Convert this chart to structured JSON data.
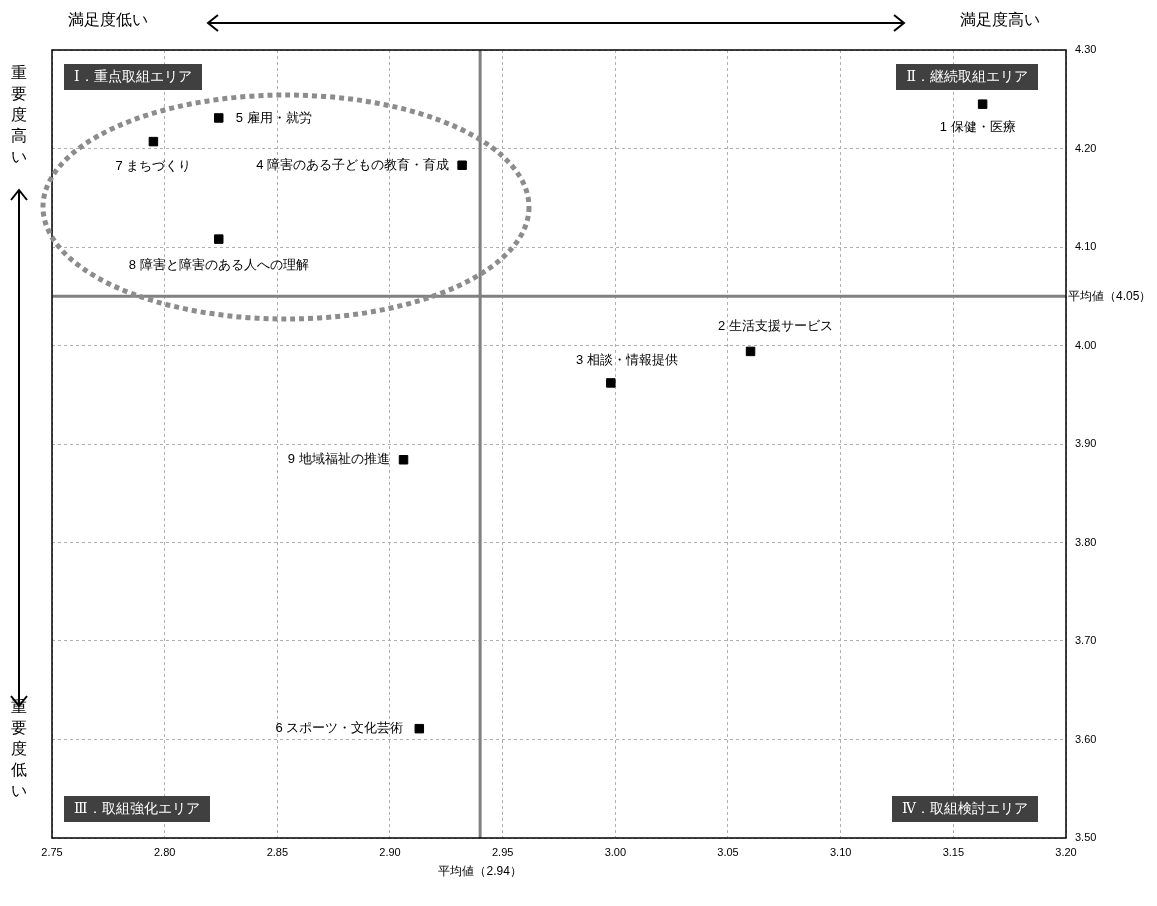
{
  "chart_data": {
    "type": "scatter",
    "marker": "square",
    "grid": true,
    "legend": false,
    "x": [
      3.163,
      3.06,
      2.998,
      2.932,
      2.824,
      2.913,
      2.795,
      2.824,
      2.906
    ],
    "series": [
      {
        "color": "#000000",
        "values": [
          4.245,
          3.994,
          3.962,
          4.183,
          4.231,
          3.611,
          4.207,
          4.108,
          3.884
        ]
      }
    ],
    "xlim": [
      2.75,
      3.2
    ],
    "xticks": [
      {
        "value": 2.75,
        "label": "2.75"
      },
      {
        "value": 2.8,
        "label": "2.80"
      },
      {
        "value": 2.85,
        "label": "2.85"
      },
      {
        "value": 2.9,
        "label": "2.90"
      },
      {
        "value": 2.95,
        "label": "2.95"
      },
      {
        "value": 3.0,
        "label": "3.00"
      },
      {
        "value": 3.05,
        "label": "3.05"
      },
      {
        "value": 3.1,
        "label": "3.10"
      },
      {
        "value": 3.15,
        "label": "3.15"
      },
      {
        "value": 3.2,
        "label": "3.20"
      }
    ],
    "ylim": [
      3.5,
      4.3
    ],
    "yticks": [
      {
        "value": 3.5,
        "label": "3.50"
      },
      {
        "value": 3.6,
        "label": "3.60"
      },
      {
        "value": 3.7,
        "label": "3.70"
      },
      {
        "value": 3.8,
        "label": "3.80"
      },
      {
        "value": 3.9,
        "label": "3.90"
      },
      {
        "value": 4.0,
        "label": "4.00"
      },
      {
        "value": 4.1,
        "label": "4.10"
      },
      {
        "value": 4.2,
        "label": "4.20"
      },
      {
        "value": 4.3,
        "label": "4.30"
      }
    ],
    "ref_lines": [
      {
        "axis": "x",
        "value": 2.94,
        "label": "平均値（2.94）",
        "color": "#808080"
      },
      {
        "axis": "y",
        "value": 4.05,
        "label": "平均値（4.05）",
        "color": "#808080"
      }
    ],
    "annotations": [
      "Ⅰ．重点取組エリア",
      "Ⅱ．継続取組エリア",
      "Ⅲ．取組強化エリア",
      "Ⅳ．取組検討エリア",
      "満足度低い",
      "満足度高い",
      "重要度高い",
      "重要度低い",
      {
        "text": "1 保健・医療",
        "x": 3.163,
        "y": 4.245
      },
      {
        "text": "2 生活支援サービス",
        "x": 3.06,
        "y": 3.994
      },
      {
        "text": "3 相談・情報提供",
        "x": 2.998,
        "y": 3.962
      },
      {
        "text": "4 障害のある子どもの教育・育成",
        "x": 2.932,
        "y": 4.183
      },
      {
        "text": "5 雇用・就労",
        "x": 2.824,
        "y": 4.231
      },
      {
        "text": "6 スポーツ・文化芸術",
        "x": 2.913,
        "y": 3.611
      },
      {
        "text": "7 まちづくり",
        "x": 2.795,
        "y": 4.207
      },
      {
        "text": "8 障害と障害のある人への理解",
        "x": 2.824,
        "y": 4.108
      },
      {
        "text": "9 地域福祉の推進",
        "x": 2.906,
        "y": 3.884
      }
    ]
  }
}
